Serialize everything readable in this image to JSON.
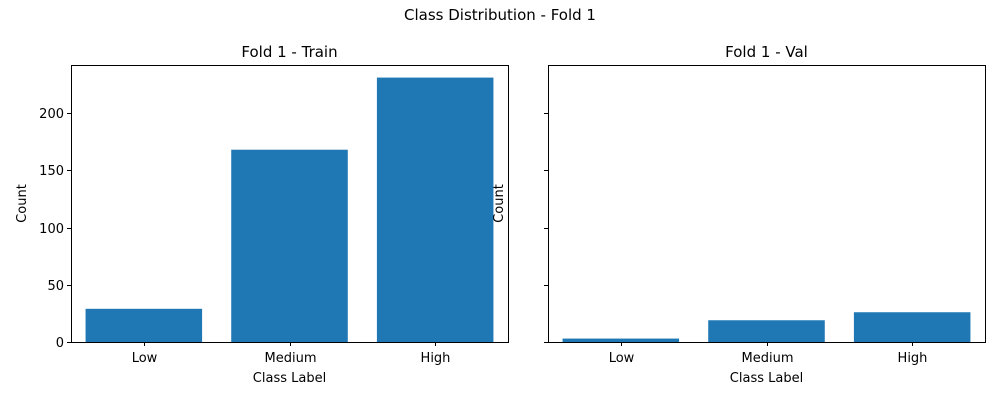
{
  "figure": {
    "suptitle": "Class Distribution - Fold 1"
  },
  "chart_data": [
    {
      "type": "bar",
      "title": "Fold 1 - Train",
      "xlabel": "Class Label",
      "ylabel": "Count",
      "categories": [
        "Low",
        "Medium",
        "High"
      ],
      "values": [
        29,
        168,
        231
      ],
      "ylim": [
        0,
        242
      ],
      "yticks": [
        0,
        50,
        100,
        150,
        200
      ],
      "show_ytick_labels": true,
      "color": "#1f77b4",
      "grid": false
    },
    {
      "type": "bar",
      "title": "Fold 1 - Val",
      "xlabel": "Class Label",
      "ylabel": "Count",
      "categories": [
        "Low",
        "Medium",
        "High"
      ],
      "values": [
        3,
        19,
        26
      ],
      "ylim": [
        0,
        242
      ],
      "yticks": [
        0,
        50,
        100,
        150,
        200
      ],
      "show_ytick_labels": false,
      "color": "#1f77b4",
      "grid": false
    }
  ]
}
